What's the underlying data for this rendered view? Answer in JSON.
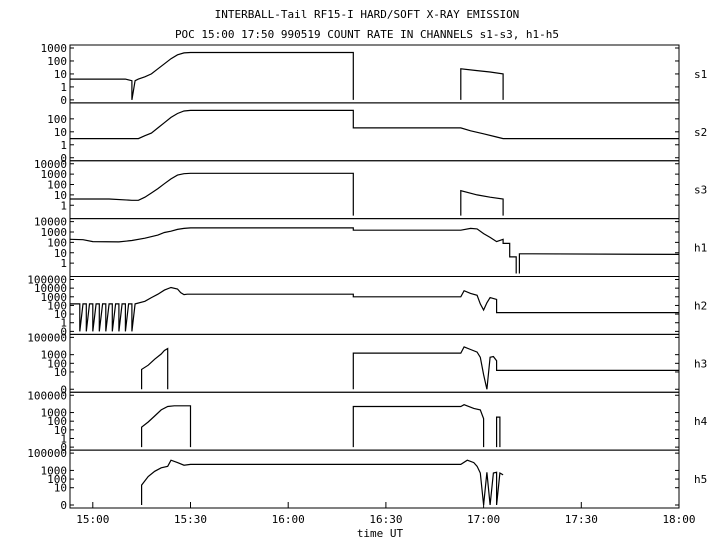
{
  "chart_data": {
    "type": "line",
    "title": "INTERBALL-Tail RF15-I HARD/SOFT X-RAY EMISSION",
    "subtitle": "POC 15:00 17:50 990519  COUNT RATE IN CHANNELS s1-s3, h1-h5",
    "xlabel": "time UT",
    "x_ticks": [
      "15:00",
      "15:30",
      "16:00",
      "16:30",
      "17:00",
      "17:30",
      "18:00"
    ],
    "xlim_minutes": [
      -7,
      180
    ],
    "y_scale": "log",
    "grid": false,
    "line_color": "#000000",
    "panels": [
      {
        "name": "s1",
        "ylim": [
          0.1,
          1000
        ],
        "y_ticks": [
          "1000",
          "100",
          "10",
          "1",
          "0"
        ],
        "y_tick_values": [
          1000,
          100,
          10,
          1,
          0.1
        ],
        "segments": [
          [
            [
              -7,
              4
            ],
            [
              5,
              4
            ],
            [
              10,
              4
            ],
            [
              12,
              3
            ],
            [
              12,
              0.1
            ],
            [
              13,
              3
            ],
            [
              14,
              4
            ],
            [
              16,
              6
            ],
            [
              18,
              10
            ],
            [
              20,
              25
            ],
            [
              22,
              60
            ],
            [
              24,
              150
            ],
            [
              26,
              300
            ],
            [
              28,
              420
            ],
            [
              30,
              450
            ],
            [
              80,
              450
            ],
            [
              80,
              0.1
            ]
          ],
          [
            [
              113,
              0.1
            ],
            [
              113,
              25
            ],
            [
              118,
              18
            ],
            [
              122,
              14
            ],
            [
              126,
              10
            ],
            [
              126,
              0.1
            ]
          ]
        ]
      },
      {
        "name": "s2",
        "ylim": [
          0.1,
          1000
        ],
        "y_ticks": [
          "100",
          "10",
          "1",
          "0"
        ],
        "y_tick_values": [
          100,
          10,
          1,
          0.1
        ],
        "segments": [
          [
            [
              -7,
              3
            ],
            [
              5,
              3
            ],
            [
              10,
              3
            ],
            [
              14,
              3
            ],
            [
              16,
              5
            ],
            [
              18,
              8
            ],
            [
              20,
              20
            ],
            [
              22,
              50
            ],
            [
              24,
              130
            ],
            [
              26,
              260
            ],
            [
              28,
              400
            ],
            [
              30,
              450
            ],
            [
              80,
              450
            ],
            [
              80,
              20
            ],
            [
              113,
              20
            ],
            [
              116,
              12
            ],
            [
              120,
              7
            ],
            [
              124,
              4
            ],
            [
              126,
              3
            ],
            [
              130,
              3
            ],
            [
              180,
              3
            ]
          ]
        ]
      },
      {
        "name": "s3",
        "ylim": [
          0.1,
          10000
        ],
        "y_ticks": [
          "10000",
          "1000",
          "100",
          "10",
          "1"
        ],
        "y_tick_values": [
          10000,
          1000,
          100,
          10,
          1
        ],
        "segments": [
          [
            [
              -7,
              4
            ],
            [
              5,
              4
            ],
            [
              12,
              3
            ],
            [
              14,
              3
            ],
            [
              16,
              6
            ],
            [
              18,
              15
            ],
            [
              20,
              40
            ],
            [
              22,
              120
            ],
            [
              24,
              350
            ],
            [
              26,
              800
            ],
            [
              28,
              1100
            ],
            [
              30,
              1200
            ],
            [
              80,
              1200
            ],
            [
              80,
              0.1
            ]
          ],
          [
            [
              113,
              0.1
            ],
            [
              113,
              25
            ],
            [
              118,
              10
            ],
            [
              122,
              6
            ],
            [
              126,
              4
            ],
            [
              126,
              0.1
            ]
          ]
        ]
      },
      {
        "name": "h1",
        "ylim": [
          0.1,
          10000
        ],
        "y_ticks": [
          "10000",
          "1000",
          "100",
          "10",
          "1"
        ],
        "y_tick_values": [
          10000,
          1000,
          100,
          10,
          1
        ],
        "segments": [
          [
            [
              -7,
              200
            ],
            [
              -3,
              180
            ],
            [
              0,
              120
            ],
            [
              8,
              110
            ],
            [
              12,
              150
            ],
            [
              16,
              250
            ],
            [
              20,
              500
            ],
            [
              22,
              900
            ],
            [
              24,
              1200
            ],
            [
              26,
              1800
            ],
            [
              28,
              2200
            ],
            [
              30,
              2500
            ],
            [
              80,
              2500
            ],
            [
              80,
              1500
            ],
            [
              113,
              1500
            ],
            [
              116,
              2200
            ],
            [
              118,
              2000
            ],
            [
              120,
              700
            ],
            [
              122,
              300
            ],
            [
              124,
              120
            ],
            [
              126,
              200
            ],
            [
              126,
              80
            ],
            [
              128,
              80
            ],
            [
              128,
              4
            ],
            [
              130,
              4
            ],
            [
              130,
              0.1
            ]
          ],
          [
            [
              131,
              0.1
            ],
            [
              131,
              8
            ],
            [
              135,
              8
            ],
            [
              180,
              7
            ]
          ]
        ]
      },
      {
        "name": "h2",
        "ylim": [
          0.1,
          100000
        ],
        "y_ticks": [
          "100000",
          "10000",
          "1000",
          "100",
          "10",
          "1",
          "0"
        ],
        "y_tick_values": [
          100000,
          10000,
          1000,
          100,
          10,
          1,
          0.1
        ],
        "segments": [
          [
            [
              -7,
              150
            ],
            [
              -4,
              150
            ],
            [
              -4,
              0.1
            ],
            [
              -3,
              150
            ],
            [
              -2,
              150
            ],
            [
              -2,
              0.1
            ],
            [
              -1,
              150
            ],
            [
              0,
              150
            ],
            [
              0,
              0.1
            ],
            [
              1,
              150
            ],
            [
              2,
              150
            ],
            [
              2,
              0.1
            ],
            [
              3,
              150
            ],
            [
              4,
              150
            ],
            [
              4,
              0.1
            ],
            [
              5,
              150
            ],
            [
              6,
              150
            ],
            [
              6,
              0.1
            ],
            [
              7,
              150
            ],
            [
              8,
              150
            ],
            [
              8,
              0.1
            ],
            [
              9,
              150
            ],
            [
              10,
              150
            ],
            [
              10,
              0.1
            ],
            [
              11,
              150
            ],
            [
              12,
              150
            ],
            [
              12,
              0.1
            ],
            [
              13,
              150
            ],
            [
              16,
              300
            ],
            [
              18,
              800
            ],
            [
              20,
              2000
            ],
            [
              22,
              6000
            ],
            [
              24,
              12000
            ],
            [
              26,
              8000
            ],
            [
              27,
              3000
            ],
            [
              28,
              1800
            ],
            [
              29,
              2000
            ],
            [
              80,
              2000
            ],
            [
              80,
              1000
            ],
            [
              113,
              1000
            ],
            [
              114,
              5000
            ],
            [
              116,
              2500
            ],
            [
              118,
              1500
            ],
            [
              119,
              150
            ],
            [
              120,
              30
            ],
            [
              121,
              200
            ],
            [
              122,
              800
            ],
            [
              124,
              500
            ],
            [
              124,
              15
            ],
            [
              180,
              15
            ]
          ]
        ]
      },
      {
        "name": "h3",
        "ylim": [
          0.1,
          100000
        ],
        "y_ticks": [
          "100000",
          "1000",
          "100",
          "10",
          "0"
        ],
        "y_tick_values": [
          100000,
          1000,
          100,
          10,
          0.1
        ],
        "segments": [
          [
            [
              15,
              0.1
            ],
            [
              15,
              20
            ],
            [
              17,
              60
            ],
            [
              19,
              300
            ],
            [
              21,
              1200
            ],
            [
              22,
              3000
            ],
            [
              23,
              5000
            ],
            [
              23,
              0.1
            ]
          ],
          [
            [
              80,
              0.1
            ],
            [
              80,
              1500
            ],
            [
              113,
              1500
            ],
            [
              114,
              8000
            ],
            [
              116,
              4000
            ],
            [
              118,
              2000
            ],
            [
              119,
              500
            ],
            [
              120,
              5
            ],
            [
              121,
              0.1
            ],
            [
              122,
              500
            ],
            [
              123,
              600
            ],
            [
              124,
              200
            ],
            [
              124,
              15
            ],
            [
              180,
              15
            ]
          ]
        ]
      },
      {
        "name": "h4",
        "ylim": [
          0.1,
          100000
        ],
        "y_ticks": [
          "100000",
          "1000",
          "100",
          "10",
          "1",
          "0"
        ],
        "y_tick_values": [
          100000,
          1000,
          100,
          10,
          1,
          0.1
        ],
        "segments": [
          [
            [
              15,
              0.1
            ],
            [
              15,
              20
            ],
            [
              17,
              80
            ],
            [
              19,
              400
            ],
            [
              21,
              2000
            ],
            [
              23,
              5000
            ],
            [
              25,
              6000
            ],
            [
              30,
              6000
            ],
            [
              30,
              0.1
            ]
          ],
          [
            [
              80,
              0.1
            ],
            [
              80,
              5000
            ],
            [
              113,
              5000
            ],
            [
              114,
              8000
            ],
            [
              117,
              3000
            ],
            [
              119,
              2000
            ],
            [
              120,
              200
            ],
            [
              120,
              0.1
            ]
          ],
          [
            [
              124,
              0.1
            ],
            [
              124,
              300
            ],
            [
              125,
              300
            ],
            [
              125,
              0.1
            ]
          ]
        ]
      },
      {
        "name": "h5",
        "ylim": [
          0.1,
          100000
        ],
        "y_ticks": [
          "100000",
          "1000",
          "100",
          "10",
          "0"
        ],
        "y_tick_values": [
          100000,
          1000,
          100,
          10,
          0.1
        ],
        "segments": [
          [
            [
              15,
              0.1
            ],
            [
              15,
              20
            ],
            [
              17,
              200
            ],
            [
              19,
              800
            ],
            [
              21,
              2000
            ],
            [
              23,
              3000
            ],
            [
              24,
              15000
            ],
            [
              26,
              8000
            ],
            [
              28,
              4000
            ],
            [
              30,
              5000
            ],
            [
              80,
              5000
            ],
            [
              113,
              5000
            ],
            [
              115,
              15000
            ],
            [
              117,
              8000
            ],
            [
              118,
              3000
            ],
            [
              119,
              500
            ],
            [
              120,
              0.1
            ],
            [
              121,
              600
            ],
            [
              122,
              0.1
            ],
            [
              123,
              500
            ],
            [
              124,
              600
            ],
            [
              124,
              0.1
            ],
            [
              125,
              500
            ],
            [
              126,
              300
            ]
          ]
        ]
      }
    ]
  }
}
